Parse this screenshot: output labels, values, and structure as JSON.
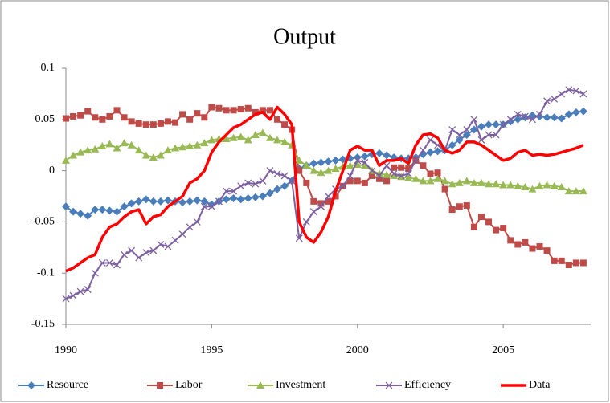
{
  "chart_data": {
    "type": "line",
    "title": "Output",
    "x": [
      1990,
      1990.25,
      1990.5,
      1990.75,
      1991,
      1991.25,
      1991.5,
      1991.75,
      1992,
      1992.25,
      1992.5,
      1992.75,
      1993,
      1993.25,
      1993.5,
      1993.75,
      1994,
      1994.25,
      1994.5,
      1994.75,
      1995,
      1995.25,
      1995.5,
      1995.75,
      1996,
      1996.25,
      1996.5,
      1996.75,
      1997,
      1997.25,
      1997.5,
      1997.75,
      1998,
      1998.25,
      1998.5,
      1998.75,
      1999,
      1999.25,
      1999.5,
      1999.75,
      2000,
      2000.25,
      2000.5,
      2000.75,
      2001,
      2001.25,
      2001.5,
      2001.75,
      2002,
      2002.25,
      2002.5,
      2002.75,
      2003,
      2003.25,
      2003.5,
      2003.75,
      2004,
      2004.25,
      2004.5,
      2004.75,
      2005,
      2005.25,
      2005.5,
      2005.75,
      2006,
      2006.25,
      2006.5,
      2006.75,
      2007,
      2007.25,
      2007.5,
      2007.75
    ],
    "xlim": [
      1990,
      2008
    ],
    "xticks": [
      1990,
      1995,
      2000,
      2005
    ],
    "ylim": [
      -0.15,
      0.1
    ],
    "yticks": [
      {
        "value": -0.15,
        "label": "-0.15"
      },
      {
        "value": -0.1,
        "label": "-0.1"
      },
      {
        "value": -0.05,
        "label": "-0.05"
      },
      0,
      {
        "value": 0.05,
        "label": "0.05"
      },
      {
        "value": 0.1,
        "label": "0.1"
      }
    ],
    "grid": false,
    "legend": "bottom",
    "series": [
      {
        "name": "Resource",
        "color": "#4a7ebb",
        "marker": "diamond",
        "values": [
          -0.035,
          -0.04,
          -0.042,
          -0.044,
          -0.038,
          -0.038,
          -0.039,
          -0.04,
          -0.035,
          -0.032,
          -0.03,
          -0.028,
          -0.03,
          -0.03,
          -0.029,
          -0.03,
          -0.031,
          -0.03,
          -0.029,
          -0.03,
          -0.033,
          -0.03,
          -0.028,
          -0.027,
          -0.028,
          -0.027,
          -0.026,
          -0.025,
          -0.022,
          -0.018,
          -0.015,
          -0.01,
          0.002,
          0.005,
          0.007,
          0.008,
          0.009,
          0.01,
          0.011,
          0.012,
          0.013,
          0.014,
          0.016,
          0.017,
          0.015,
          0.013,
          0.012,
          0.012,
          0.013,
          0.016,
          0.018,
          0.019,
          0.02,
          0.025,
          0.03,
          0.035,
          0.04,
          0.043,
          0.045,
          0.045,
          0.045,
          0.048,
          0.05,
          0.052,
          0.054,
          0.053,
          0.052,
          0.052,
          0.051,
          0.055,
          0.057,
          0.058
        ]
      },
      {
        "name": "Labor",
        "color": "#be4b48",
        "marker": "square",
        "values": [
          0.051,
          0.053,
          0.054,
          0.058,
          0.052,
          0.05,
          0.053,
          0.059,
          0.052,
          0.048,
          0.046,
          0.045,
          0.045,
          0.046,
          0.048,
          0.047,
          0.055,
          0.05,
          0.056,
          0.052,
          0.062,
          0.061,
          0.059,
          0.059,
          0.06,
          0.061,
          0.057,
          0.059,
          0.059,
          0.05,
          0.045,
          0.04,
          0.0,
          -0.012,
          -0.03,
          -0.032,
          -0.03,
          -0.025,
          -0.015,
          -0.01,
          -0.01,
          -0.012,
          -0.005,
          -0.008,
          -0.01,
          0.003,
          0.003,
          0.002,
          0.01,
          0.005,
          -0.003,
          -0.002,
          -0.018,
          -0.038,
          -0.035,
          -0.034,
          -0.055,
          -0.045,
          -0.05,
          -0.058,
          -0.056,
          -0.068,
          -0.072,
          -0.07,
          -0.076,
          -0.074,
          -0.078,
          -0.088,
          -0.088,
          -0.092,
          -0.09,
          -0.09
        ]
      },
      {
        "name": "Investment",
        "color": "#98b954",
        "marker": "triangle",
        "values": [
          0.01,
          0.015,
          0.018,
          0.02,
          0.021,
          0.024,
          0.026,
          0.022,
          0.027,
          0.025,
          0.02,
          0.015,
          0.013,
          0.015,
          0.02,
          0.022,
          0.023,
          0.024,
          0.025,
          0.027,
          0.03,
          0.031,
          0.031,
          0.032,
          0.033,
          0.03,
          0.035,
          0.037,
          0.032,
          0.03,
          0.028,
          0.025,
          0.01,
          0.005,
          0.0,
          -0.002,
          0.0,
          0.002,
          0.004,
          0.005,
          0.006,
          0.005,
          0.0,
          -0.003,
          -0.004,
          -0.005,
          -0.006,
          -0.007,
          -0.008,
          -0.01,
          -0.01,
          -0.008,
          -0.01,
          -0.013,
          -0.012,
          -0.01,
          -0.012,
          -0.012,
          -0.013,
          -0.013,
          -0.014,
          -0.014,
          -0.015,
          -0.016,
          -0.018,
          -0.015,
          -0.014,
          -0.015,
          -0.016,
          -0.02,
          -0.02,
          -0.02
        ]
      },
      {
        "name": "Efficiency",
        "color": "#7d60a0",
        "marker": "x",
        "values": [
          -0.125,
          -0.122,
          -0.118,
          -0.116,
          -0.1,
          -0.09,
          -0.09,
          -0.092,
          -0.082,
          -0.078,
          -0.085,
          -0.08,
          -0.078,
          -0.072,
          -0.074,
          -0.068,
          -0.062,
          -0.055,
          -0.05,
          -0.035,
          -0.035,
          -0.03,
          -0.02,
          -0.02,
          -0.015,
          -0.012,
          -0.013,
          -0.01,
          0.0,
          -0.003,
          -0.005,
          -0.01,
          -0.066,
          -0.05,
          -0.04,
          -0.035,
          -0.025,
          -0.018,
          -0.015,
          -0.005,
          0.01,
          0.008,
          0.0,
          -0.005,
          0.005,
          -0.003,
          -0.005,
          -0.003,
          0.01,
          0.02,
          0.03,
          0.025,
          0.02,
          0.04,
          0.035,
          0.04,
          0.05,
          0.03,
          0.035,
          0.035,
          0.045,
          0.05,
          0.055,
          0.053,
          0.05,
          0.055,
          0.068,
          0.07,
          0.075,
          0.079,
          0.078,
          0.075
        ]
      },
      {
        "name": "Data",
        "color": "#ff0000",
        "marker": "none",
        "values": [
          -0.098,
          -0.095,
          -0.09,
          -0.085,
          -0.082,
          -0.065,
          -0.055,
          -0.052,
          -0.045,
          -0.04,
          -0.038,
          -0.052,
          -0.045,
          -0.043,
          -0.035,
          -0.03,
          -0.025,
          -0.012,
          -0.008,
          0.0,
          0.018,
          0.028,
          0.035,
          0.042,
          0.045,
          0.05,
          0.055,
          0.057,
          0.05,
          0.062,
          0.055,
          0.045,
          -0.05,
          -0.065,
          -0.07,
          -0.06,
          -0.045,
          -0.02,
          0.0,
          0.02,
          0.024,
          0.02,
          0.02,
          0.005,
          0.01,
          0.01,
          0.012,
          0.007,
          0.025,
          0.035,
          0.036,
          0.032,
          0.02,
          0.017,
          0.02,
          0.028,
          0.028,
          0.025,
          0.02,
          0.015,
          0.01,
          0.012,
          0.018,
          0.02,
          0.015,
          0.016,
          0.015,
          0.016,
          0.018,
          0.02,
          0.022,
          0.025
        ]
      }
    ]
  }
}
